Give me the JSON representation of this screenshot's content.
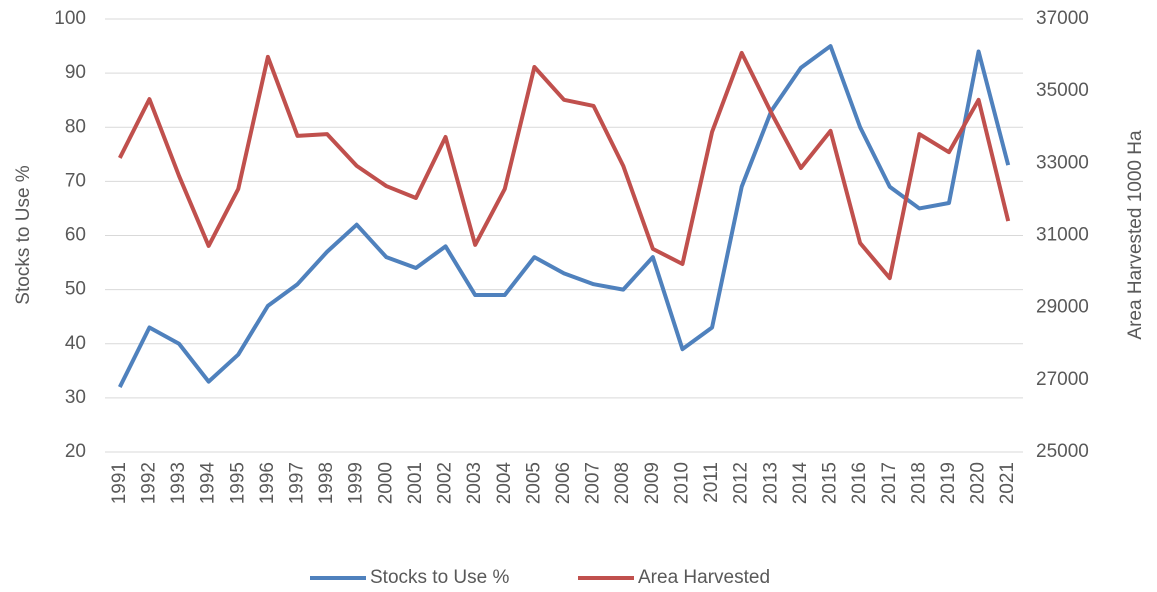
{
  "chart_data": {
    "type": "line",
    "categories": [
      "1991",
      "1992",
      "1993",
      "1994",
      "1995",
      "1996",
      "1997",
      "1998",
      "1999",
      "2000",
      "2001",
      "2002",
      "2003",
      "2004",
      "2005",
      "2006",
      "2007",
      "2008",
      "2009",
      "2010",
      "2011",
      "2012",
      "2013",
      "2014",
      "2015",
      "2016",
      "2017",
      "2018",
      "2019",
      "2020",
      "2021"
    ],
    "series": [
      {
        "name": "Stocks to Use %",
        "color": "#4f81bd",
        "axis": "y",
        "values": [
          32,
          43,
          40,
          33,
          38,
          47,
          51,
          57,
          62,
          56,
          54,
          58,
          49,
          49,
          56,
          53,
          51,
          50,
          56,
          39,
          43,
          69,
          83,
          91,
          95,
          80,
          69,
          65,
          66,
          94,
          73
        ]
      },
      {
        "name": "Area Harvested",
        "color": "#c0504d",
        "axis": "y2",
        "values": [
          33150,
          34780,
          32650,
          30710,
          32290,
          35950,
          33760,
          33810,
          32930,
          32370,
          32040,
          33730,
          30740,
          32290,
          35670,
          34760,
          34590,
          32930,
          30630,
          30210,
          33870,
          36060,
          34400,
          32870,
          33900,
          30790,
          29820,
          33810,
          33310,
          34760,
          31400
        ]
      }
    ],
    "ylabel": "Stocks to Use %",
    "y2label": "Area Harvested 1000 Ha",
    "ylim": [
      20,
      100
    ],
    "yticks": [
      20,
      30,
      40,
      50,
      60,
      70,
      80,
      90,
      100
    ],
    "y2lim": [
      25000,
      37000
    ],
    "y2ticks": [
      25000,
      27000,
      29000,
      31000,
      33000,
      35000,
      37000
    ],
    "grid": true,
    "legend": "bottom"
  }
}
